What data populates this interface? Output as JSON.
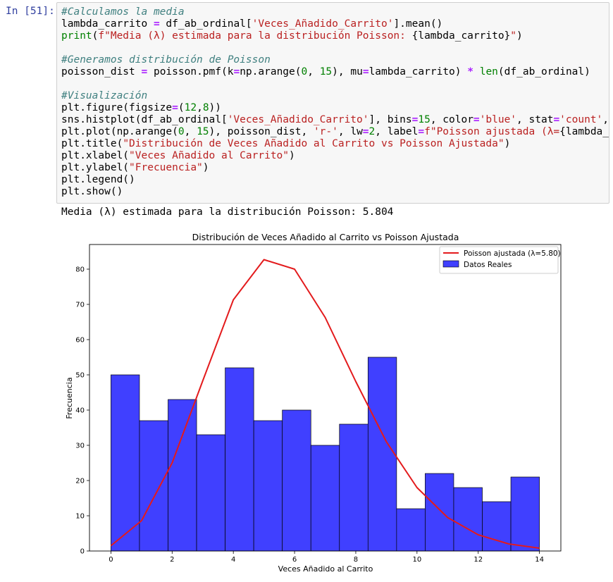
{
  "cell": {
    "prompt": "In [51]:",
    "code_lines": [
      [
        {
          "t": "#Calculamos la media",
          "c": "cm"
        }
      ],
      [
        {
          "t": "lambda_carrito "
        },
        {
          "t": "=",
          "c": "op"
        },
        {
          "t": " df_ab_ordinal["
        },
        {
          "t": "'Veces_Añadido_Carrito'",
          "c": "st"
        },
        {
          "t": "].mean()"
        }
      ],
      [
        {
          "t": "print",
          "c": "bi"
        },
        {
          "t": "("
        },
        {
          "t": "f\"Media (λ) estimada para la distribución Poisson: ",
          "c": "st"
        },
        {
          "t": "{lambda_carrito}"
        },
        {
          "t": "\"",
          "c": "st"
        },
        {
          "t": ")"
        }
      ],
      [],
      [
        {
          "t": "#Generamos distribución de Poisson",
          "c": "cm"
        }
      ],
      [
        {
          "t": "poisson_dist "
        },
        {
          "t": "=",
          "c": "op"
        },
        {
          "t": " poisson.pmf(k"
        },
        {
          "t": "=",
          "c": "op"
        },
        {
          "t": "np.arange("
        },
        {
          "t": "0",
          "c": "nu"
        },
        {
          "t": ", "
        },
        {
          "t": "15",
          "c": "nu"
        },
        {
          "t": "), mu"
        },
        {
          "t": "=",
          "c": "op"
        },
        {
          "t": "lambda_carrito) "
        },
        {
          "t": "*",
          "c": "op"
        },
        {
          "t": " "
        },
        {
          "t": "len",
          "c": "bi"
        },
        {
          "t": "(df_ab_ordinal)"
        }
      ],
      [],
      [
        {
          "t": "#Visualización",
          "c": "cm"
        }
      ],
      [
        {
          "t": "plt.figure(figsize"
        },
        {
          "t": "=",
          "c": "op"
        },
        {
          "t": "("
        },
        {
          "t": "12",
          "c": "nu"
        },
        {
          "t": ","
        },
        {
          "t": "8",
          "c": "nu"
        },
        {
          "t": "))"
        }
      ],
      [
        {
          "t": "sns.histplot(df_ab_ordinal["
        },
        {
          "t": "'Veces_Añadido_Carrito'",
          "c": "st"
        },
        {
          "t": "], bins"
        },
        {
          "t": "=",
          "c": "op"
        },
        {
          "t": "15",
          "c": "nu"
        },
        {
          "t": ", color"
        },
        {
          "t": "=",
          "c": "op"
        },
        {
          "t": "'blue'",
          "c": "st"
        },
        {
          "t": ", stat"
        },
        {
          "t": "=",
          "c": "op"
        },
        {
          "t": "'count'",
          "c": "st"
        },
        {
          "t": ", lab"
        }
      ],
      [
        {
          "t": "plt.plot(np.arange("
        },
        {
          "t": "0",
          "c": "nu"
        },
        {
          "t": ", "
        },
        {
          "t": "15",
          "c": "nu"
        },
        {
          "t": "), poisson_dist, "
        },
        {
          "t": "'r-'",
          "c": "st"
        },
        {
          "t": ", lw"
        },
        {
          "t": "=",
          "c": "op"
        },
        {
          "t": "2",
          "c": "nu"
        },
        {
          "t": ", label"
        },
        {
          "t": "=",
          "c": "op"
        },
        {
          "t": "f\"Poisson ajustada (λ=",
          "c": "st"
        },
        {
          "t": "{lambda_car"
        }
      ],
      [
        {
          "t": "plt.title("
        },
        {
          "t": "\"Distribución de Veces Añadido al Carrito vs Poisson Ajustada\"",
          "c": "st"
        },
        {
          "t": ")"
        }
      ],
      [
        {
          "t": "plt.xlabel("
        },
        {
          "t": "\"Veces Añadido al Carrito\"",
          "c": "st"
        },
        {
          "t": ")"
        }
      ],
      [
        {
          "t": "plt.ylabel("
        },
        {
          "t": "\"Frecuencia\"",
          "c": "st"
        },
        {
          "t": ")"
        }
      ],
      [
        {
          "t": "plt.legend()"
        }
      ],
      [
        {
          "t": "plt.show()"
        }
      ]
    ],
    "output_text": "Media (λ) estimada para la distribución Poisson: 5.804"
  },
  "chart_data": {
    "type": "bar",
    "title": "Distribución de Veces Añadido al Carrito vs Poisson Ajustada",
    "xlabel": "Veces Añadido al Carrito",
    "ylabel": "Frecuencia",
    "xlim": [
      -0.7,
      14.7
    ],
    "ylim": [
      0,
      87
    ],
    "xticks": [
      0,
      2,
      4,
      6,
      8,
      10,
      12,
      14
    ],
    "yticks": [
      0,
      10,
      20,
      30,
      40,
      50,
      60,
      70,
      80
    ],
    "grid": false,
    "legend_position": "top-right",
    "histogram": {
      "name": "Datos Reales",
      "bin_edges": [
        0,
        0.9333,
        1.8667,
        2.8,
        3.7333,
        4.6667,
        5.6,
        6.5333,
        7.4667,
        8.4,
        9.3333,
        10.2667,
        11.2,
        12.1333,
        13.0667,
        14
      ],
      "counts": [
        50,
        37,
        43,
        33,
        52,
        37,
        40,
        30,
        36,
        55,
        12,
        22,
        18,
        14,
        21
      ],
      "color": "#4040ff"
    },
    "line": {
      "name": "Poisson ajustada (λ=5.80)",
      "x": [
        0,
        1,
        2,
        3,
        4,
        5,
        6,
        7,
        8,
        9,
        10,
        11,
        12,
        13,
        14
      ],
      "y": [
        1.5,
        8.6,
        25.0,
        48.3,
        71.3,
        82.7,
        80.0,
        66.3,
        48.1,
        31.0,
        18.0,
        9.5,
        4.6,
        2.0,
        0.8
      ],
      "color": "#e31a1c"
    }
  }
}
